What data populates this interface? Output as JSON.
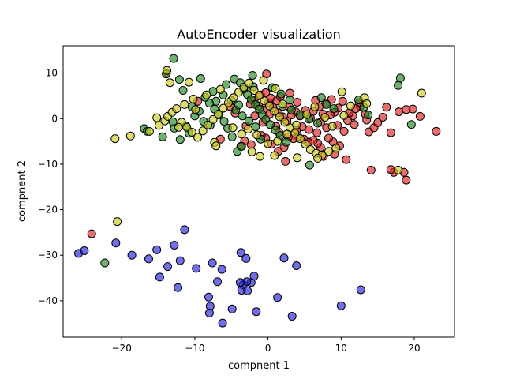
{
  "chart_data": {
    "type": "scatter",
    "title": "AutoEncoder visualization",
    "xlabel": "compnent 1",
    "ylabel": "compnent 2",
    "xlim": [
      -28,
      25.5
    ],
    "ylim": [
      -48,
      16
    ],
    "xticks": [
      -20,
      -10,
      0,
      10,
      20
    ],
    "yticks": [
      -40,
      -30,
      -20,
      -10,
      0,
      10
    ],
    "grid": false,
    "legend": "none",
    "marker_edge_color": "#000000",
    "series": [
      {
        "color": "#dd2222",
        "points": [
          [
            -24.1,
            -25.3
          ],
          [
            23.0,
            -2.8
          ],
          [
            20.8,
            0.5
          ],
          [
            19.8,
            2.1
          ],
          [
            18.9,
            2.0
          ],
          [
            17.9,
            1.5
          ],
          [
            17.2,
            -11.8
          ],
          [
            18.6,
            -11.8
          ],
          [
            18.9,
            -13.5
          ],
          [
            16.8,
            -11.2
          ],
          [
            14.1,
            -11.3
          ],
          [
            16.2,
            2.5
          ],
          [
            16.8,
            -3.1
          ],
          [
            15.7,
            0.3
          ],
          [
            13.8,
            -2.9
          ],
          [
            13.5,
            -0.3
          ],
          [
            13.3,
            1.0
          ],
          [
            12.6,
            2.7
          ],
          [
            11.6,
            0.6
          ],
          [
            10.4,
            -2.8
          ],
          [
            10.7,
            -9.0
          ],
          [
            9.8,
            -6.0
          ],
          [
            9.1,
            -7.8
          ],
          [
            8.9,
            -5.1
          ],
          [
            8.3,
            -4.3
          ],
          [
            7.6,
            -8.3
          ],
          [
            7.2,
            -6.3
          ],
          [
            6.8,
            -5.4
          ],
          [
            6.2,
            -4.8
          ],
          [
            5.5,
            -5.2
          ],
          [
            4.9,
            -4.5
          ],
          [
            4.1,
            -3.9
          ],
          [
            3.5,
            -4.4
          ],
          [
            2.8,
            -4.0
          ],
          [
            2.2,
            -6.3
          ],
          [
            1.4,
            -7.2
          ],
          [
            0.5,
            -5.6
          ],
          [
            -0.3,
            -4.3
          ],
          [
            -0.9,
            -3.7
          ],
          [
            -2.3,
            -5.7
          ],
          [
            -3.7,
            -6.1
          ],
          [
            -6.5,
            -4.5
          ],
          [
            -3.2,
            -4.9
          ],
          [
            2.4,
            -9.4
          ],
          [
            9.6,
            2.3
          ],
          [
            10.2,
            3.8
          ],
          [
            11.1,
            1.2
          ],
          [
            9.1,
            1.4
          ],
          [
            8.5,
            0.8
          ],
          [
            7.9,
            3.4
          ],
          [
            7.0,
            2.6
          ],
          [
            6.2,
            1.6
          ],
          [
            5.8,
            0.1
          ],
          [
            5.1,
            1.8
          ],
          [
            4.4,
            0.6
          ],
          [
            3.8,
            1.5
          ],
          [
            3.2,
            0.8
          ],
          [
            2.6,
            -0.6
          ],
          [
            2.0,
            0.4
          ],
          [
            1.4,
            1.3
          ],
          [
            0.7,
            2.4
          ],
          [
            0.1,
            3.5
          ],
          [
            -0.6,
            1.9
          ],
          [
            -1.3,
            2.8
          ],
          [
            -1.9,
            4.1
          ],
          [
            -2.4,
            3.2
          ],
          [
            -1.0,
            5.2
          ],
          [
            -0.3,
            5.7
          ],
          [
            0.4,
            4.5
          ],
          [
            1.2,
            3.9
          ],
          [
            1.7,
            4.8
          ],
          [
            -0.2,
            9.8
          ],
          [
            7.2,
            -0.8
          ],
          [
            8.0,
            -2.0
          ],
          [
            9.5,
            -1.5
          ],
          [
            10.9,
            -0.4
          ],
          [
            11.8,
            -1.3
          ],
          [
            12.5,
            3.5
          ],
          [
            14.5,
            -2.0
          ],
          [
            4.7,
            -1.8
          ],
          [
            3.9,
            -2.6
          ],
          [
            5.6,
            -2.4
          ],
          [
            6.7,
            -3.1
          ],
          [
            -13.9,
            9.8
          ],
          [
            -9.6,
            3.8
          ],
          [
            -5.2,
            2.7
          ],
          [
            -3.0,
            -1.6
          ],
          [
            -1.8,
            0.6
          ],
          [
            -0.7,
            -0.8
          ],
          [
            1.1,
            -1.7
          ],
          [
            2.9,
            2.6
          ],
          [
            4.0,
            3.6
          ],
          [
            6.5,
            4.0
          ],
          [
            8.7,
            4.2
          ],
          [
            0.2,
            0.9
          ],
          [
            -4.5,
            1.2
          ],
          [
            7.5,
            1.0
          ],
          [
            12.0,
            2.2
          ],
          [
            15.0,
            -0.9
          ],
          [
            3.0,
            5.6
          ],
          [
            1.5,
            -3.0
          ]
        ]
      },
      {
        "color": "#228822",
        "points": [
          [
            -22.3,
            -31.7
          ],
          [
            -12.9,
            13.2
          ],
          [
            -13.9,
            9.9
          ],
          [
            -12.1,
            8.6
          ],
          [
            -11.6,
            6.2
          ],
          [
            -10.4,
            2.6
          ],
          [
            -10.0,
            0.6
          ],
          [
            -9.4,
            1.6
          ],
          [
            -8.8,
            -0.6
          ],
          [
            -12.0,
            -4.6
          ],
          [
            -12.8,
            -2.1
          ],
          [
            -14.4,
            -4.0
          ],
          [
            -16.9,
            -2.2
          ],
          [
            -16.5,
            -2.8
          ],
          [
            -7.9,
            -1.5
          ],
          [
            -7.1,
            3.8
          ],
          [
            -6.1,
            5.2
          ],
          [
            -5.7,
            7.5
          ],
          [
            -4.6,
            8.7
          ],
          [
            -3.8,
            7.9
          ],
          [
            -3.3,
            6.5
          ],
          [
            -2.8,
            5.3
          ],
          [
            -2.3,
            4.2
          ],
          [
            -1.7,
            3.1
          ],
          [
            -1.2,
            2.1
          ],
          [
            -0.8,
            0.9
          ],
          [
            -0.3,
            -0.2
          ],
          [
            0.3,
            -1.3
          ],
          [
            1.0,
            -2.5
          ],
          [
            1.7,
            -3.7
          ],
          [
            -4.2,
            -7.2
          ],
          [
            -3.6,
            -6.1
          ],
          [
            -4.9,
            -4.0
          ],
          [
            -5.5,
            -2.1
          ],
          [
            -6.0,
            -0.6
          ],
          [
            -6.7,
            0.8
          ],
          [
            -7.3,
            2.1
          ],
          [
            -8.0,
            3.4
          ],
          [
            -8.6,
            4.7
          ],
          [
            -4.4,
            1.9
          ],
          [
            -3.5,
            0.6
          ],
          [
            -2.6,
            -0.5
          ],
          [
            -1.7,
            -1.8
          ],
          [
            2.0,
            2.7
          ],
          [
            3.2,
            1.9
          ],
          [
            4.4,
            0.9
          ],
          [
            5.6,
            -0.1
          ],
          [
            6.8,
            -1.0
          ],
          [
            8.0,
            3.1
          ],
          [
            9.0,
            2.2
          ],
          [
            5.7,
            -10.2
          ],
          [
            12.4,
            4.1
          ],
          [
            13.1,
            2.5
          ],
          [
            13.7,
            0.8
          ],
          [
            17.8,
            7.3
          ],
          [
            18.1,
            8.9
          ],
          [
            19.6,
            -1.3
          ],
          [
            -2.1,
            9.5
          ],
          [
            0.6,
            6.8
          ],
          [
            1.8,
            5.4
          ],
          [
            3.0,
            4.1
          ],
          [
            -9.2,
            8.8
          ],
          [
            -7.5,
            6.0
          ],
          [
            -5.0,
            4.0
          ],
          [
            -10.8,
            -3.2
          ],
          [
            -13.0,
            -0.7
          ],
          [
            -11.2,
            -1.6
          ],
          [
            -1.0,
            -4.5
          ],
          [
            2.5,
            -5.2
          ],
          [
            7.3,
            4.6
          ],
          [
            -2.0,
            7.0
          ],
          [
            -4.0,
            3.0
          ]
        ]
      },
      {
        "color": "#cccc22",
        "points": [
          [
            -20.6,
            -22.6
          ],
          [
            -20.9,
            -4.4
          ],
          [
            -18.8,
            -3.8
          ],
          [
            -16.2,
            -2.8
          ],
          [
            -14.9,
            -1.5
          ],
          [
            -14.1,
            -0.5
          ],
          [
            -13.7,
            0.5
          ],
          [
            -13.1,
            1.4
          ],
          [
            -12.5,
            2.2
          ],
          [
            -11.8,
            -0.8
          ],
          [
            -11.1,
            -1.9
          ],
          [
            -10.4,
            -3.0
          ],
          [
            -9.6,
            -4.1
          ],
          [
            -8.9,
            -2.7
          ],
          [
            -8.2,
            -1.4
          ],
          [
            -7.5,
            -0.2
          ],
          [
            -6.8,
            1.0
          ],
          [
            -6.1,
            2.3
          ],
          [
            -5.4,
            3.5
          ],
          [
            -4.7,
            4.6
          ],
          [
            -4.0,
            5.8
          ],
          [
            -3.3,
            6.9
          ],
          [
            -2.6,
            7.8
          ],
          [
            -1.9,
            6.2
          ],
          [
            -1.2,
            5.0
          ],
          [
            -0.5,
            3.9
          ],
          [
            0.2,
            2.8
          ],
          [
            0.9,
            1.6
          ],
          [
            1.6,
            0.4
          ],
          [
            2.3,
            -0.8
          ],
          [
            3.0,
            -2.0
          ],
          [
            3.7,
            -3.2
          ],
          [
            4.4,
            -4.4
          ],
          [
            5.1,
            -5.6
          ],
          [
            5.8,
            -6.8
          ],
          [
            6.6,
            -7.6
          ],
          [
            7.4,
            -8.0
          ],
          [
            8.3,
            -7.2
          ],
          [
            9.3,
            -6.5
          ],
          [
            -13.4,
            7.9
          ],
          [
            -13.8,
            10.6
          ],
          [
            -10.8,
            8.0
          ],
          [
            -10.2,
            4.3
          ],
          [
            -11.4,
            3.1
          ],
          [
            -7.3,
            -5.2
          ],
          [
            -7.1,
            -6.0
          ],
          [
            -2.2,
            -7.3
          ],
          [
            -1.1,
            -8.3
          ],
          [
            0.9,
            -8.1
          ],
          [
            4.0,
            -8.6
          ],
          [
            6.8,
            -8.7
          ],
          [
            10.4,
            0.7
          ],
          [
            11.3,
            2.8
          ],
          [
            10.1,
            5.9
          ],
          [
            13.2,
            4.6
          ],
          [
            13.5,
            3.3
          ],
          [
            17.8,
            -11.3
          ],
          [
            21.0,
            5.6
          ],
          [
            -6.5,
            6.4
          ],
          [
            -8.4,
            5.2
          ],
          [
            -9.9,
            2.0
          ],
          [
            -12.2,
            -1.9
          ],
          [
            -15.2,
            0.2
          ],
          [
            -4.8,
            -2.0
          ],
          [
            -3.6,
            -3.4
          ],
          [
            -2.7,
            -2.3
          ],
          [
            -1.5,
            -3.6
          ],
          [
            0.0,
            -5.5
          ],
          [
            1.3,
            -5.0
          ],
          [
            2.6,
            -3.4
          ],
          [
            3.9,
            -1.4
          ],
          [
            5.3,
            0.9
          ],
          [
            6.4,
            2.6
          ],
          [
            7.8,
            0.3
          ],
          [
            8.8,
            -1.7
          ],
          [
            -0.6,
            8.4
          ],
          [
            1.0,
            6.6
          ],
          [
            2.0,
            3.2
          ]
        ]
      },
      {
        "color": "#2222dd",
        "points": [
          [
            -25.9,
            -29.6
          ],
          [
            -25.1,
            -29.0
          ],
          [
            -20.8,
            -27.3
          ],
          [
            -18.6,
            -30.0
          ],
          [
            -16.3,
            -30.8
          ],
          [
            -15.2,
            -28.8
          ],
          [
            -14.8,
            -34.8
          ],
          [
            -13.7,
            -32.5
          ],
          [
            -12.8,
            -27.8
          ],
          [
            -12.0,
            -31.2
          ],
          [
            -12.3,
            -37.1
          ],
          [
            -11.4,
            -24.4
          ],
          [
            -9.8,
            -32.9
          ],
          [
            -7.6,
            -31.7
          ],
          [
            -6.9,
            -35.8
          ],
          [
            -6.3,
            -33.1
          ],
          [
            -8.1,
            -39.2
          ],
          [
            -7.9,
            -41.2
          ],
          [
            -8.0,
            -42.7
          ],
          [
            -6.2,
            -44.9
          ],
          [
            -4.9,
            -41.8
          ],
          [
            -3.7,
            -29.4
          ],
          [
            -3.4,
            -36.5
          ],
          [
            -3.0,
            -30.7
          ],
          [
            -2.3,
            -36.0
          ],
          [
            -2.9,
            -35.8
          ],
          [
            -3.8,
            -36.0
          ],
          [
            -3.6,
            -37.7
          ],
          [
            -1.9,
            -34.6
          ],
          [
            -2.8,
            -37.8
          ],
          [
            -1.6,
            -42.4
          ],
          [
            2.2,
            -30.6
          ],
          [
            3.9,
            -32.3
          ],
          [
            1.3,
            -39.3
          ],
          [
            3.3,
            -43.4
          ],
          [
            10.0,
            -41.1
          ],
          [
            12.7,
            -37.6
          ]
        ]
      }
    ]
  }
}
